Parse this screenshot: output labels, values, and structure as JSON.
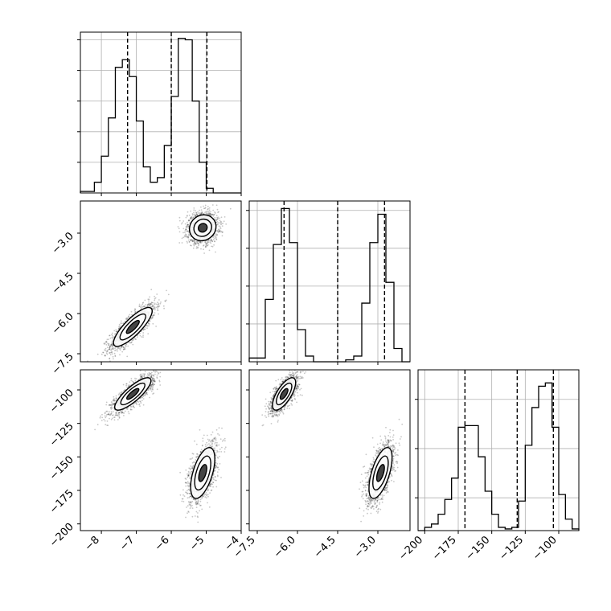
{
  "chart_data": {
    "type": "corner",
    "title": "",
    "parameters": [
      {
        "id": "p1",
        "label": "",
        "range": [
          -8.6,
          -4.0
        ],
        "ticks": [
          -8,
          -7,
          -6,
          -5,
          -4
        ],
        "tick_labels": [
          "−8",
          "−7",
          "−6",
          "−5",
          "−4"
        ]
      },
      {
        "id": "p2",
        "label": "",
        "range": [
          -7.8,
          -1.8
        ],
        "ticks": [
          -7.5,
          -6.0,
          -4.5,
          -3.0
        ],
        "tick_labels": [
          "−7.5",
          "−6.0",
          "−4.5",
          "−3.0"
        ]
      },
      {
        "id": "p3",
        "label": "",
        "range": [
          -205,
          -85
        ],
        "ticks": [
          -200,
          -175,
          -150,
          -125,
          -100
        ],
        "tick_labels": [
          "−200",
          "−175",
          "−150",
          "−125",
          "−100"
        ]
      }
    ],
    "marginals": [
      {
        "param": "p1",
        "bin_edges": [
          -8.6,
          -8.4,
          -8.2,
          -8.0,
          -7.8,
          -7.6,
          -7.4,
          -7.2,
          -7.0,
          -6.8,
          -6.6,
          -6.4,
          -6.2,
          -6.0,
          -5.8,
          -5.6,
          -5.4,
          -5.2,
          -5.0,
          -4.8,
          -4.6,
          -4.4,
          -4.2,
          -4.0
        ],
        "counts": [
          1,
          1,
          7,
          24,
          49,
          82,
          87,
          76,
          47,
          17,
          7,
          10,
          31,
          63,
          101,
          100,
          60,
          20,
          3,
          0,
          0,
          0,
          0
        ],
        "ymax": 105,
        "grid_ticks": [
          20,
          40,
          60,
          80,
          100
        ],
        "quantiles": [
          -7.25,
          -6.0,
          -4.98
        ]
      },
      {
        "param": "p2",
        "bin_edges": [
          -7.8,
          -7.5,
          -7.2,
          -6.9,
          -6.6,
          -6.3,
          -6.0,
          -5.7,
          -5.4,
          -5.1,
          -4.8,
          -4.5,
          -4.2,
          -3.9,
          -3.6,
          -3.3,
          -3.0,
          -2.7,
          -2.4,
          -2.1,
          -1.8
        ],
        "counts": [
          2,
          2,
          33,
          62,
          81,
          63,
          17,
          3,
          0,
          0,
          0,
          0,
          1,
          3,
          31,
          63,
          78,
          42,
          7,
          0
        ],
        "ymax": 85,
        "grid_ticks": [
          20,
          40,
          60,
          80
        ],
        "quantiles": [
          -6.5,
          -4.5,
          -2.75
        ]
      },
      {
        "param": "p3",
        "bin_edges": [
          -205,
          -200,
          -195,
          -190,
          -185,
          -180,
          -175,
          -170,
          -165,
          -160,
          -155,
          -150,
          -145,
          -140,
          -135,
          -130,
          -125,
          -120,
          -115,
          -110,
          -105,
          -100,
          -95,
          -90,
          -85
        ],
        "counts": [
          0,
          2,
          4,
          10,
          19,
          32,
          63,
          64,
          64,
          45,
          24,
          10,
          2,
          1,
          2,
          18,
          52,
          75,
          88,
          90,
          63,
          22,
          7,
          1
        ],
        "ymax": 98,
        "grid_ticks": [
          20,
          50,
          80
        ],
        "quantiles": [
          -170,
          -131,
          -104
        ]
      }
    ],
    "joint": [
      {
        "x": "p1",
        "y": "p2",
        "modes": [
          {
            "center": [
              -7.1,
              -6.5
            ],
            "sx": 0.32,
            "sy": 0.42,
            "rho": 0.82,
            "n": 1600
          },
          {
            "center": [
              -5.1,
              -2.8
            ],
            "sx": 0.22,
            "sy": 0.28,
            "rho": 0.1,
            "n": 1600
          }
        ]
      },
      {
        "x": "p1",
        "y": "p3",
        "modes": [
          {
            "center": [
              -7.1,
              -103
            ],
            "sx": 0.3,
            "sy": 7,
            "rho": 0.82,
            "n": 1600
          },
          {
            "center": [
              -5.1,
              -162
            ],
            "sx": 0.2,
            "sy": 11,
            "rho": 0.55,
            "n": 1600
          }
        ]
      },
      {
        "x": "p2",
        "y": "p3",
        "modes": [
          {
            "center": [
              -6.5,
              -103
            ],
            "sx": 0.25,
            "sy": 7,
            "rho": 0.7,
            "n": 1600
          },
          {
            "center": [
              -2.9,
              -162
            ],
            "sx": 0.25,
            "sy": 11,
            "rho": 0.6,
            "n": 1600
          }
        ]
      }
    ],
    "contour_levels_sigma": [
      0.5,
      1.0,
      1.5
    ],
    "grid": true
  }
}
